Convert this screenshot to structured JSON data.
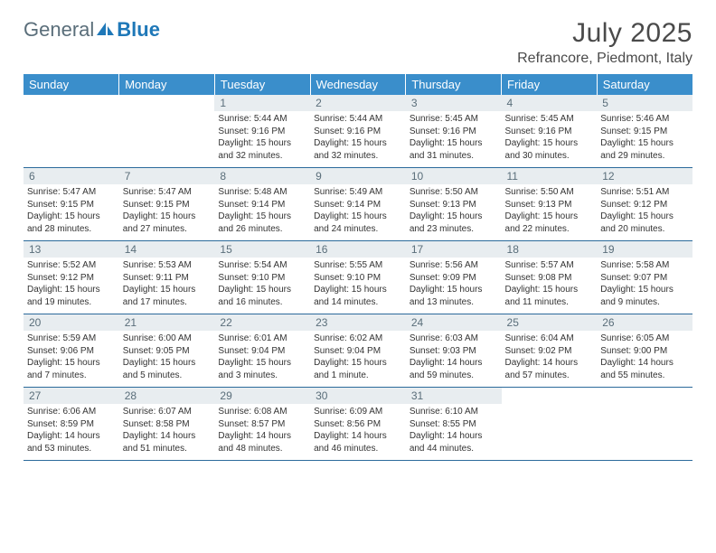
{
  "brand": {
    "part1": "General",
    "part2": "Blue"
  },
  "title": "July 2025",
  "location": "Refrancore, Piedmont, Italy",
  "colors": {
    "header_bg": "#3a8ecb",
    "header_text": "#ffffff",
    "daynum_bg": "#e8edf0",
    "daynum_text": "#5a6e7a",
    "rule": "#2b6a9b",
    "body_text": "#333333",
    "brand_gray": "#5a6e7a",
    "brand_blue": "#1f78b8"
  },
  "typography": {
    "title_size": 30,
    "location_size": 16,
    "daynum_size": 12,
    "body_size": 10,
    "weekday_size": 13
  },
  "weekdays": [
    "Sunday",
    "Monday",
    "Tuesday",
    "Wednesday",
    "Thursday",
    "Friday",
    "Saturday"
  ],
  "weeks": [
    [
      null,
      null,
      {
        "n": "1",
        "sr": "5:44 AM",
        "ss": "9:16 PM",
        "dl": "15 hours and 32 minutes."
      },
      {
        "n": "2",
        "sr": "5:44 AM",
        "ss": "9:16 PM",
        "dl": "15 hours and 32 minutes."
      },
      {
        "n": "3",
        "sr": "5:45 AM",
        "ss": "9:16 PM",
        "dl": "15 hours and 31 minutes."
      },
      {
        "n": "4",
        "sr": "5:45 AM",
        "ss": "9:16 PM",
        "dl": "15 hours and 30 minutes."
      },
      {
        "n": "5",
        "sr": "5:46 AM",
        "ss": "9:15 PM",
        "dl": "15 hours and 29 minutes."
      }
    ],
    [
      {
        "n": "6",
        "sr": "5:47 AM",
        "ss": "9:15 PM",
        "dl": "15 hours and 28 minutes."
      },
      {
        "n": "7",
        "sr": "5:47 AM",
        "ss": "9:15 PM",
        "dl": "15 hours and 27 minutes."
      },
      {
        "n": "8",
        "sr": "5:48 AM",
        "ss": "9:14 PM",
        "dl": "15 hours and 26 minutes."
      },
      {
        "n": "9",
        "sr": "5:49 AM",
        "ss": "9:14 PM",
        "dl": "15 hours and 24 minutes."
      },
      {
        "n": "10",
        "sr": "5:50 AM",
        "ss": "9:13 PM",
        "dl": "15 hours and 23 minutes."
      },
      {
        "n": "11",
        "sr": "5:50 AM",
        "ss": "9:13 PM",
        "dl": "15 hours and 22 minutes."
      },
      {
        "n": "12",
        "sr": "5:51 AM",
        "ss": "9:12 PM",
        "dl": "15 hours and 20 minutes."
      }
    ],
    [
      {
        "n": "13",
        "sr": "5:52 AM",
        "ss": "9:12 PM",
        "dl": "15 hours and 19 minutes."
      },
      {
        "n": "14",
        "sr": "5:53 AM",
        "ss": "9:11 PM",
        "dl": "15 hours and 17 minutes."
      },
      {
        "n": "15",
        "sr": "5:54 AM",
        "ss": "9:10 PM",
        "dl": "15 hours and 16 minutes."
      },
      {
        "n": "16",
        "sr": "5:55 AM",
        "ss": "9:10 PM",
        "dl": "15 hours and 14 minutes."
      },
      {
        "n": "17",
        "sr": "5:56 AM",
        "ss": "9:09 PM",
        "dl": "15 hours and 13 minutes."
      },
      {
        "n": "18",
        "sr": "5:57 AM",
        "ss": "9:08 PM",
        "dl": "15 hours and 11 minutes."
      },
      {
        "n": "19",
        "sr": "5:58 AM",
        "ss": "9:07 PM",
        "dl": "15 hours and 9 minutes."
      }
    ],
    [
      {
        "n": "20",
        "sr": "5:59 AM",
        "ss": "9:06 PM",
        "dl": "15 hours and 7 minutes."
      },
      {
        "n": "21",
        "sr": "6:00 AM",
        "ss": "9:05 PM",
        "dl": "15 hours and 5 minutes."
      },
      {
        "n": "22",
        "sr": "6:01 AM",
        "ss": "9:04 PM",
        "dl": "15 hours and 3 minutes."
      },
      {
        "n": "23",
        "sr": "6:02 AM",
        "ss": "9:04 PM",
        "dl": "15 hours and 1 minute."
      },
      {
        "n": "24",
        "sr": "6:03 AM",
        "ss": "9:03 PM",
        "dl": "14 hours and 59 minutes."
      },
      {
        "n": "25",
        "sr": "6:04 AM",
        "ss": "9:02 PM",
        "dl": "14 hours and 57 minutes."
      },
      {
        "n": "26",
        "sr": "6:05 AM",
        "ss": "9:00 PM",
        "dl": "14 hours and 55 minutes."
      }
    ],
    [
      {
        "n": "27",
        "sr": "6:06 AM",
        "ss": "8:59 PM",
        "dl": "14 hours and 53 minutes."
      },
      {
        "n": "28",
        "sr": "6:07 AM",
        "ss": "8:58 PM",
        "dl": "14 hours and 51 minutes."
      },
      {
        "n": "29",
        "sr": "6:08 AM",
        "ss": "8:57 PM",
        "dl": "14 hours and 48 minutes."
      },
      {
        "n": "30",
        "sr": "6:09 AM",
        "ss": "8:56 PM",
        "dl": "14 hours and 46 minutes."
      },
      {
        "n": "31",
        "sr": "6:10 AM",
        "ss": "8:55 PM",
        "dl": "14 hours and 44 minutes."
      },
      null,
      null
    ]
  ],
  "labels": {
    "sunrise": "Sunrise:",
    "sunset": "Sunset:",
    "daylight": "Daylight:"
  }
}
